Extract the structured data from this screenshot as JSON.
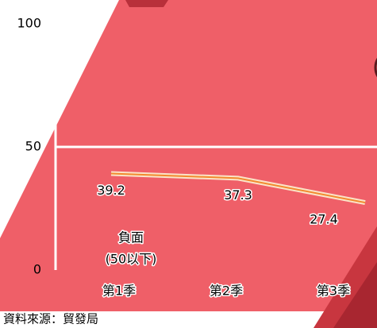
{
  "chart_data": {
    "type": "line",
    "categories": [
      "第1季",
      "第2季",
      "第3季"
    ],
    "values": [
      39.2,
      37.3,
      27.4
    ],
    "color": "#f28a2e",
    "ylim": [
      0,
      100
    ],
    "yticks": [
      0,
      50,
      100
    ],
    "annotation": [
      "負面",
      "(50以下)"
    ],
    "source": "資料來源：貿發局"
  }
}
